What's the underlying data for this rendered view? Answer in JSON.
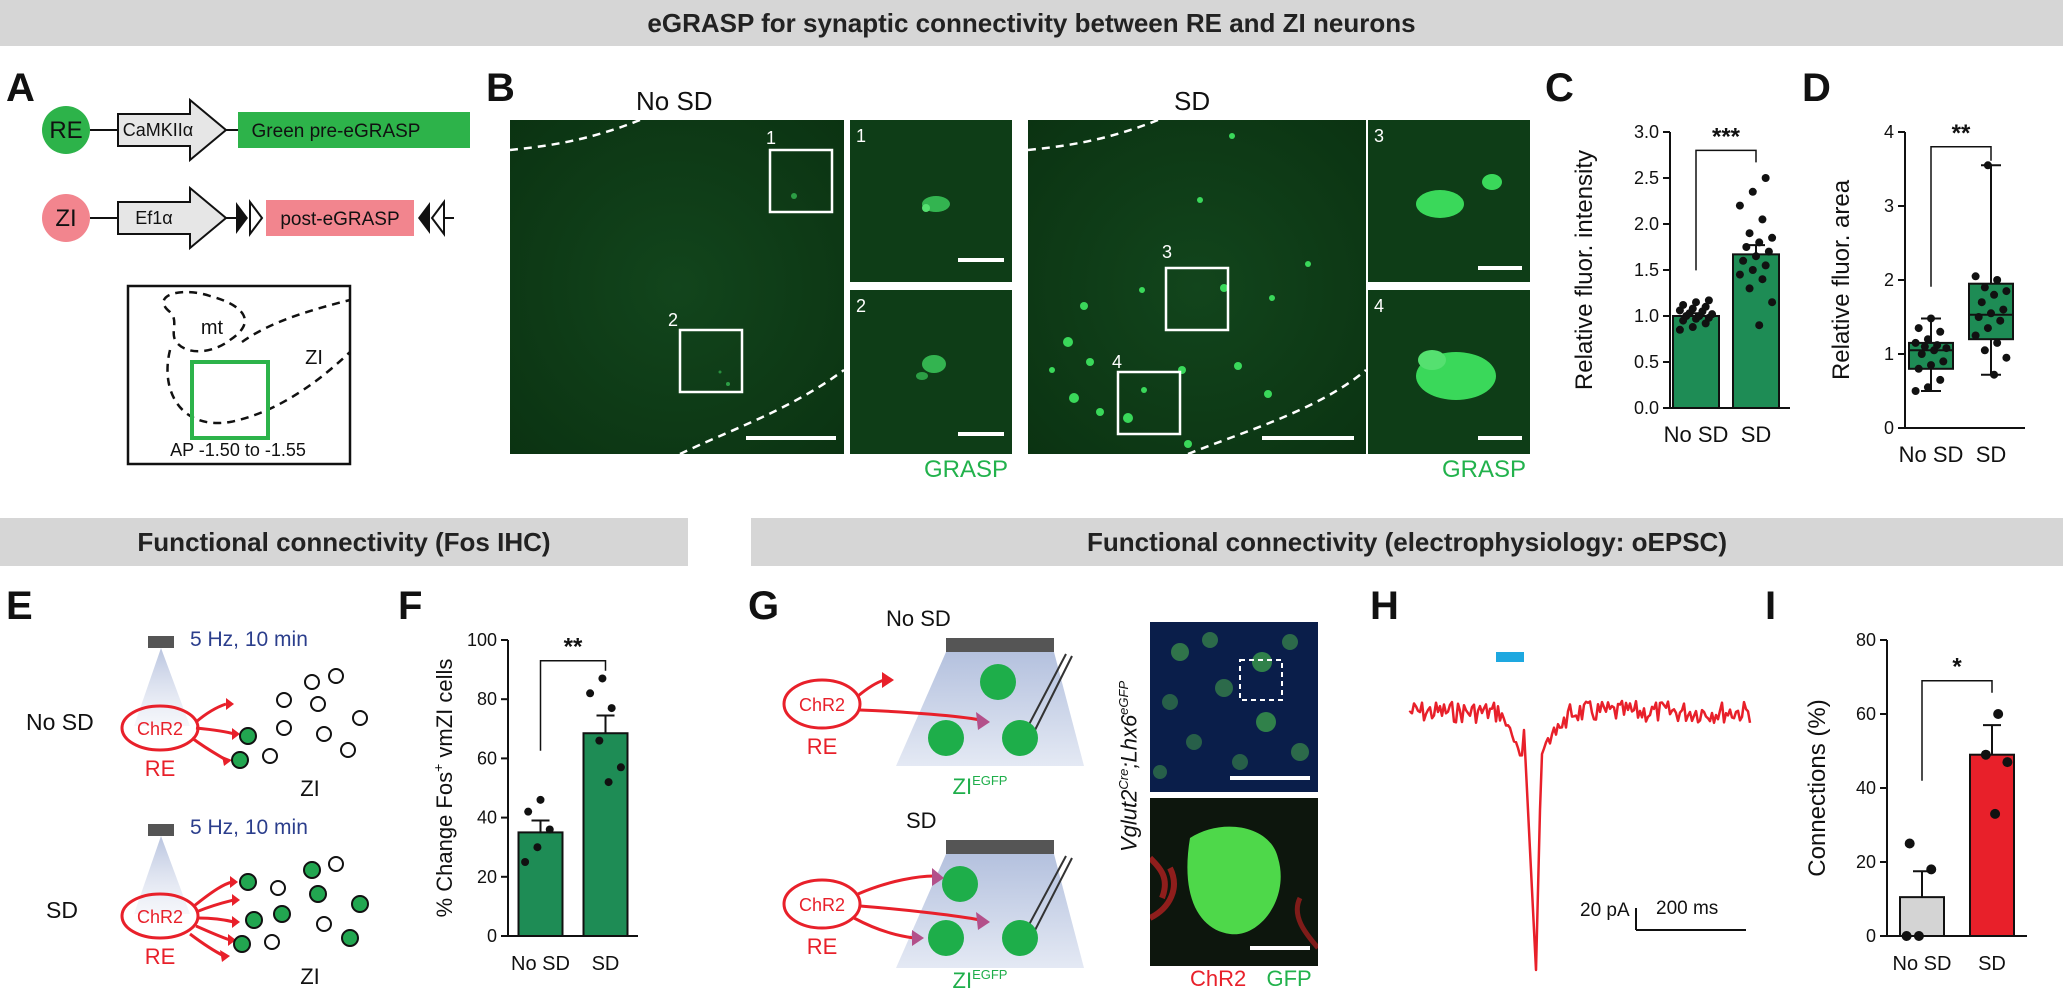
{
  "headers": {
    "top": "eGRASP for synaptic connectivity between RE and ZI neurons",
    "fos": "Functional connectivity (Fos IHC)",
    "ephys": "Functional connectivity (electrophysiology: oEPSC)"
  },
  "panels": {
    "A": {
      "letter": "A",
      "re": "RE",
      "zi": "ZI",
      "promoter_re": "CaMKIIα",
      "construct_re": "Green pre-eGRASP",
      "promoter_zi": "Ef1α",
      "construct_zi": "post-eGRASP",
      "mt": "mt",
      "zi_region": "ZI",
      "ap": "AP -1.50 to -1.55"
    },
    "B": {
      "letter": "B",
      "nosd": "No SD",
      "sd": "SD",
      "box1": "1",
      "box2": "2",
      "box3": "3",
      "box4": "4",
      "grasp": "GRASP"
    },
    "C": {
      "letter": "C"
    },
    "D": {
      "letter": "D"
    },
    "E": {
      "letter": "E",
      "stim": "5 Hz, 10 min",
      "nosd": "No SD",
      "sd": "SD",
      "chr2": "ChR2",
      "re": "RE",
      "zi": "ZI"
    },
    "F": {
      "letter": "F"
    },
    "G": {
      "letter": "G",
      "nosd": "No SD",
      "sd": "SD",
      "chr2": "ChR2",
      "re": "RE",
      "zi": "ZI",
      "zi_sup": "EGFP",
      "genotype_a": "Vglut2",
      "genotype_a_sup": "Cre",
      "genotype_sep": ";",
      "genotype_b": "Lhx6",
      "genotype_b_sup": "eGFP",
      "legend_chr2": "ChR2",
      "legend_gfp": "GFP"
    },
    "H": {
      "letter": "H",
      "scale_pa": "20 pA",
      "scale_ms": "200 ms"
    },
    "I": {
      "letter": "I"
    }
  },
  "chart_data": [
    {
      "id": "C",
      "type": "bar",
      "categories": [
        "No SD",
        "SD"
      ],
      "values": [
        1.0,
        1.67
      ],
      "errors": [
        0.03,
        0.1
      ],
      "ylabel": "Relative fluor. intensity",
      "ylim": [
        0,
        3.0
      ],
      "yticks": [
        "0.0",
        "0.5",
        "1.0",
        "1.5",
        "2.0",
        "2.5",
        "3.0"
      ],
      "significance": "***",
      "points": [
        [
          0.85,
          0.88,
          0.92,
          0.95,
          0.97,
          0.98,
          1.0,
          1.0,
          1.02,
          1.03,
          1.05,
          1.06,
          1.08,
          1.1,
          1.12,
          1.15,
          1.17
        ],
        [
          0.9,
          1.15,
          1.3,
          1.4,
          1.45,
          1.5,
          1.55,
          1.6,
          1.65,
          1.7,
          1.75,
          1.8,
          1.85,
          1.9,
          2.05,
          2.2,
          2.35,
          2.5
        ]
      ]
    },
    {
      "id": "D",
      "type": "box",
      "categories": [
        "No SD",
        "SD"
      ],
      "ylabel": "Relative fluor. area",
      "ylim": [
        0,
        4
      ],
      "yticks": [
        "0",
        "1",
        "2",
        "3",
        "4"
      ],
      "significance": "**",
      "boxes": [
        {
          "min": 0.5,
          "q1": 0.8,
          "median": 1.05,
          "q3": 1.15,
          "max": 1.48
        },
        {
          "min": 0.72,
          "q1": 1.2,
          "median": 1.53,
          "q3": 1.95,
          "max": 3.55
        }
      ],
      "points": [
        [
          0.5,
          0.55,
          0.65,
          0.8,
          0.85,
          0.9,
          1.0,
          1.05,
          1.08,
          1.1,
          1.12,
          1.15,
          1.2,
          1.3,
          1.35,
          1.48
        ],
        [
          0.72,
          0.95,
          1.05,
          1.15,
          1.25,
          1.35,
          1.45,
          1.5,
          1.55,
          1.6,
          1.7,
          1.8,
          1.85,
          1.9,
          2.0,
          2.05,
          3.55
        ]
      ]
    },
    {
      "id": "F",
      "type": "bar",
      "categories": [
        "No SD",
        "SD"
      ],
      "values": [
        35,
        68.5
      ],
      "errors": [
        4,
        6
      ],
      "ylabel": "% Change Fos+ vmZI cells",
      "ylabel_main": "% Change Fos",
      "ylabel_sup": "+",
      "ylabel_rest": " vmZI cells",
      "ylim": [
        0,
        100
      ],
      "yticks": [
        "0",
        "20",
        "40",
        "60",
        "80",
        "100"
      ],
      "significance": "**",
      "points": [
        [
          25,
          30,
          36,
          42,
          46
        ],
        [
          52,
          57,
          66,
          77,
          82,
          87
        ]
      ]
    },
    {
      "id": "I",
      "type": "bar",
      "categories": [
        "No SD",
        "SD"
      ],
      "values": [
        10.5,
        49
      ],
      "errors": [
        7,
        8
      ],
      "ylabel": "Connections (%)",
      "ylim": [
        0,
        80
      ],
      "yticks": [
        "0",
        "20",
        "40",
        "60",
        "80"
      ],
      "significance": "*",
      "points": [
        [
          0,
          0,
          18,
          25
        ],
        [
          33,
          47,
          49,
          60
        ]
      ],
      "colors": [
        "#d4d4d4",
        "#e8202a"
      ]
    }
  ],
  "colors": {
    "green": "#1e8c55",
    "red": "#e8202a",
    "blue": "#2b3e8c",
    "grasp_text": "#22b24c"
  }
}
